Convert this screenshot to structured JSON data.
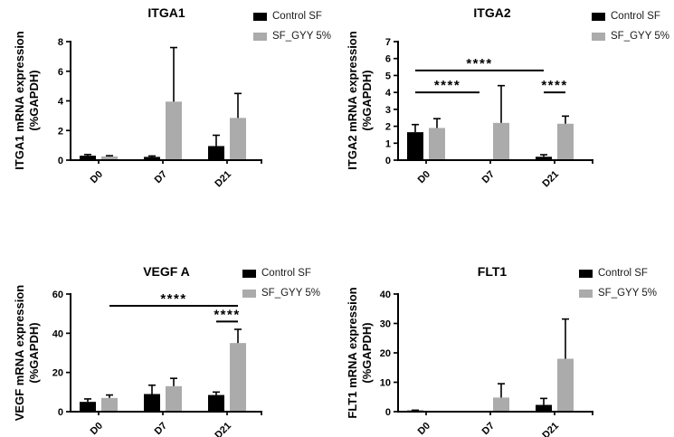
{
  "figure": {
    "legend_items": [
      {
        "label": "Control SF",
        "color": "#000000"
      },
      {
        "label": "SF_GYY 5%",
        "color": "#ABABAB"
      }
    ]
  },
  "chart_data": [
    {
      "type": "bar",
      "title": "ITGA1",
      "ylabel": "ITGA1 mRNA expression",
      "ylabel2": "(%GAPDH)",
      "categories": [
        "D0",
        "D7",
        "D21"
      ],
      "series": [
        {
          "name": "Control SF",
          "color": "#000000",
          "values": [
            0.3,
            0.22,
            0.95
          ],
          "errors": [
            0.08,
            0.06,
            0.73
          ]
        },
        {
          "name": "SF_GYY 5%",
          "color": "#ABABAB",
          "values": [
            0.25,
            3.95,
            2.85
          ],
          "errors": [
            0.05,
            3.65,
            1.65
          ]
        }
      ],
      "ylim": [
        0,
        8
      ],
      "yticks": [
        0,
        2,
        4,
        6,
        8
      ],
      "significance": []
    },
    {
      "type": "bar",
      "title": "ITGA2",
      "ylabel": "ITGA2 mRNA expression",
      "ylabel2": "(%GAPDH)",
      "categories": [
        "D0",
        "D7",
        "D21"
      ],
      "series": [
        {
          "name": "Control SF",
          "color": "#000000",
          "values": [
            1.65,
            0.05,
            0.2
          ],
          "errors": [
            0.45,
            0,
            0.12
          ]
        },
        {
          "name": "SF_GYY 5%",
          "color": "#ABABAB",
          "values": [
            1.9,
            2.2,
            2.15
          ],
          "errors": [
            0.55,
            2.2,
            0.45
          ]
        }
      ],
      "ylim": [
        0,
        7
      ],
      "yticks": [
        0,
        1,
        2,
        3,
        4,
        5,
        6,
        7
      ],
      "significance": [
        {
          "from": [
            0,
            0
          ],
          "to": [
            2,
            0
          ],
          "y": 5.3,
          "label": "****"
        },
        {
          "from": [
            0,
            0
          ],
          "to": [
            1,
            0
          ],
          "y": 4.0,
          "label": "****"
        },
        {
          "from": [
            2,
            0
          ],
          "to": [
            2,
            1
          ],
          "y": 4.0,
          "label": "****"
        }
      ]
    },
    {
      "type": "bar",
      "title": "VEGF A",
      "ylabel": "VEGF mRNA expression",
      "ylabel2": "(%GAPDH)",
      "categories": [
        "D0",
        "D7",
        "D21"
      ],
      "series": [
        {
          "name": "Control SF",
          "color": "#000000",
          "values": [
            5,
            9,
            8.5
          ],
          "errors": [
            1.5,
            4.5,
            1.5
          ]
        },
        {
          "name": "SF_GYY 5%",
          "color": "#ABABAB",
          "values": [
            7,
            13,
            35
          ],
          "errors": [
            1.5,
            4,
            7
          ]
        }
      ],
      "ylim": [
        0,
        60
      ],
      "yticks": [
        0,
        20,
        40,
        60
      ],
      "significance": [
        {
          "from": [
            0,
            1
          ],
          "to": [
            2,
            1
          ],
          "y": 54,
          "label": "****"
        },
        {
          "from": [
            2,
            0
          ],
          "to": [
            2,
            1
          ],
          "y": 46,
          "label": "****"
        }
      ]
    },
    {
      "type": "bar",
      "title": "FLT1",
      "ylabel": "FLT1 mRNA expression",
      "ylabel2": "(%GAPDH)",
      "categories": [
        "D0",
        "D7",
        "D21"
      ],
      "series": [
        {
          "name": "Control SF",
          "color": "#000000",
          "values": [
            0.4,
            0.05,
            2.3
          ],
          "errors": [
            0.1,
            0,
            2.2
          ]
        },
        {
          "name": "SF_GYY 5%",
          "color": "#ABABAB",
          "values": [
            0.2,
            4.8,
            18
          ],
          "errors": [
            0,
            4.7,
            13.5
          ]
        }
      ],
      "ylim": [
        0,
        40
      ],
      "yticks": [
        0,
        10,
        20,
        30,
        40
      ],
      "significance": []
    }
  ]
}
